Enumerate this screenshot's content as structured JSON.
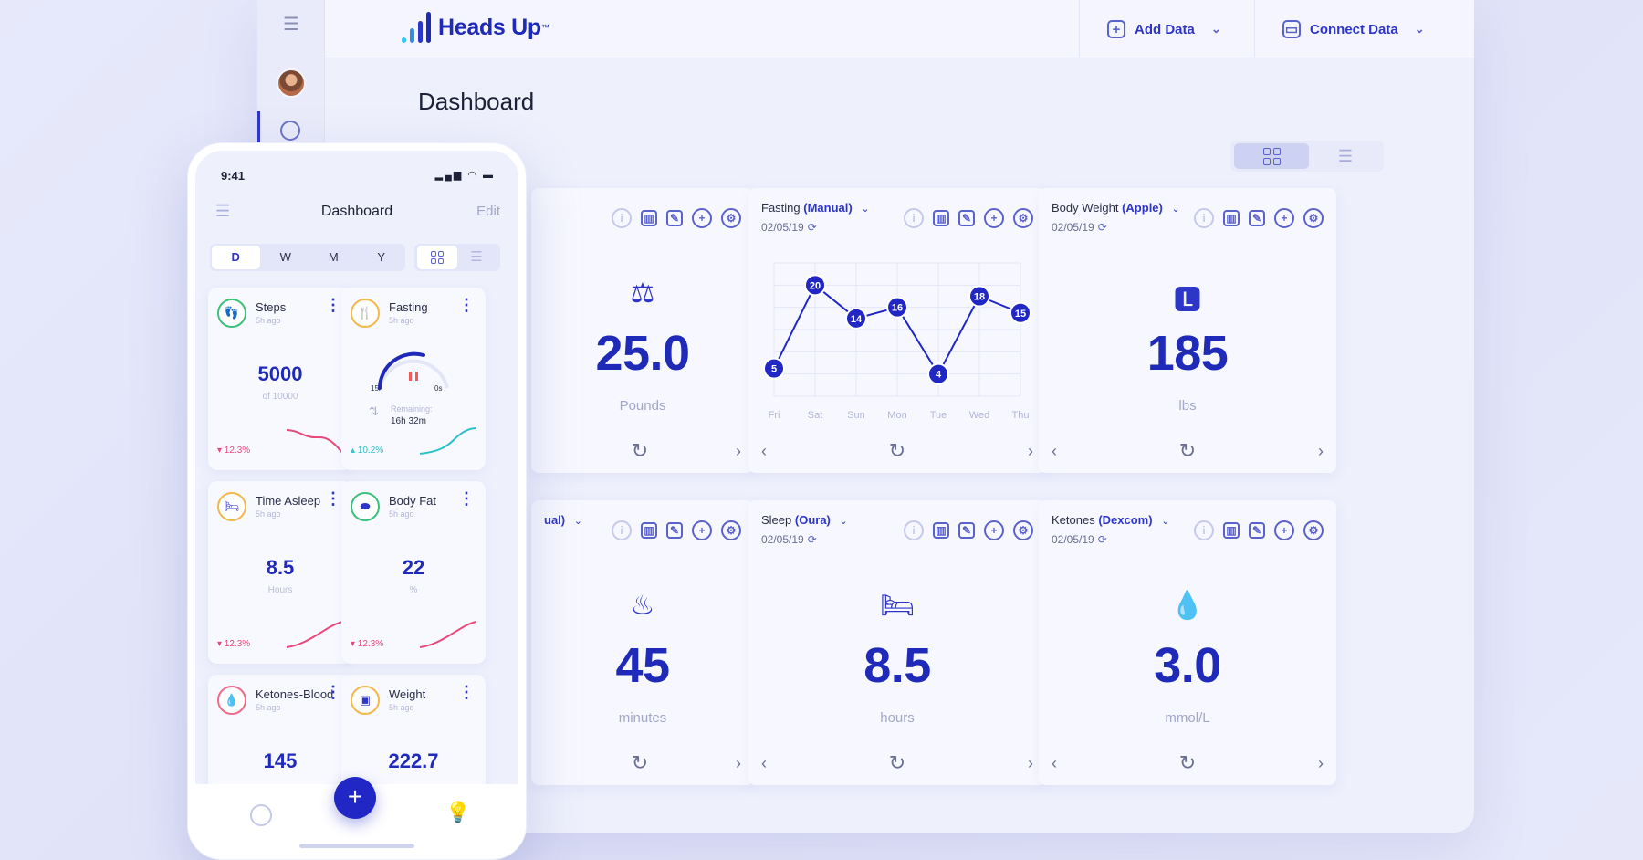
{
  "brand": {
    "name": "Heads Up",
    "tm": "™",
    "colors": {
      "primary": "#1f2bb8",
      "accent": "#2d36c7",
      "bg": "#eef0fc"
    }
  },
  "topbar": {
    "add_data": "Add Data",
    "connect_data": "Connect Data"
  },
  "page": {
    "title": "Dashboard"
  },
  "cards": [
    {
      "id": "weight",
      "title": "",
      "source": "",
      "date": "",
      "value": "25.0",
      "unit": "Pounds",
      "icon": "scale-icon"
    },
    {
      "id": "fasting",
      "title": "Fasting",
      "source": "(Manual)",
      "date": "02/05/19",
      "chart": true
    },
    {
      "id": "body-weight",
      "title": "Body Weight",
      "source": "(Apple)",
      "date": "02/05/19",
      "value": "185",
      "unit": "lbs",
      "icon": "weight-bag-icon"
    },
    {
      "id": "time",
      "title": "",
      "source": "ual)",
      "date": "",
      "value": "45",
      "unit": "minutes",
      "icon": "grill-icon"
    },
    {
      "id": "sleep",
      "title": "Sleep",
      "source": "(Oura)",
      "date": "02/05/19",
      "value": "8.5",
      "unit": "hours",
      "icon": "bed-icon"
    },
    {
      "id": "ketones",
      "title": "Ketones",
      "source": "(Dexcom)",
      "date": "02/05/19",
      "value": "3.0",
      "unit": "mmol/L",
      "icon": "drop-icon"
    }
  ],
  "chart_data": {
    "type": "line",
    "categories": [
      "Fri",
      "Sat",
      "Sun",
      "Mon",
      "Tue",
      "Wed",
      "Thu"
    ],
    "values": [
      5,
      20,
      14,
      16,
      4,
      18,
      15
    ],
    "ylim": [
      0,
      24
    ],
    "grid": true,
    "color": "#2027c4"
  },
  "phone": {
    "time": "9:41",
    "title": "Dashboard",
    "edit": "Edit",
    "segments": [
      "D",
      "W",
      "M",
      "Y"
    ],
    "tiles": [
      {
        "name": "Steps",
        "sub": "5h ago",
        "value": "5000",
        "unit": "of 10000",
        "change": "▾ 12.3%",
        "trend": "down",
        "ring": "#3cc07a",
        "icon": "footprints-icon"
      },
      {
        "name": "Fasting",
        "sub": "5h ago",
        "gauge": {
          "left": "15h",
          "right": "0s",
          "remaining_label": "Remaining:",
          "remaining": "16h 32m"
        },
        "change": "▴ 10.2%",
        "trend": "up",
        "ring": "#f2b84b",
        "icon": "cutlery-icon"
      },
      {
        "name": "Time Asleep",
        "sub": "5h ago",
        "value": "8.5",
        "unit": "Hours",
        "change": "▾ 12.3%",
        "trend": "down",
        "ring": "#f2b84b",
        "icon": "bed-icon"
      },
      {
        "name": "Body Fat",
        "sub": "5h ago",
        "value": "22",
        "unit": "%",
        "change": "▾ 12.3%",
        "trend": "down",
        "ring": "#3cc07a",
        "icon": "body-fat-icon"
      },
      {
        "name": "Ketones-Blood",
        "sub": "5h ago",
        "value": "145",
        "unit": "",
        "ring": "#f06a8a",
        "icon": "drop-icon"
      },
      {
        "name": "Weight",
        "sub": "5h ago",
        "value": "222.7",
        "unit": "",
        "ring": "#f2b84b",
        "icon": "scale-icon"
      }
    ]
  }
}
